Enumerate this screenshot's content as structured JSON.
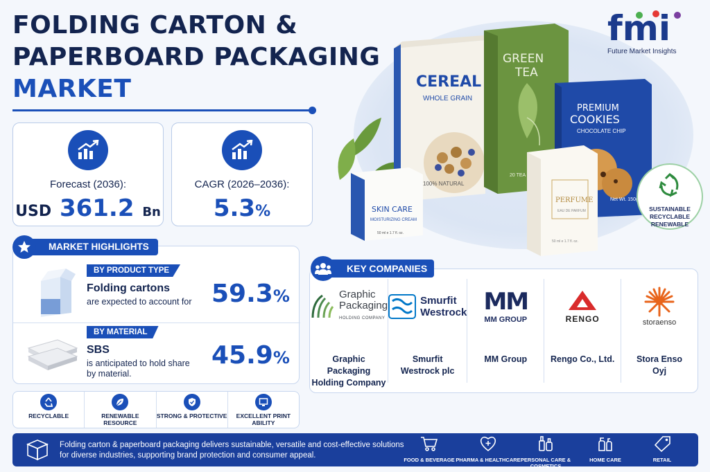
{
  "title": {
    "line1": "FOLDING CARTON &",
    "line2": "PAPERBOARD PACKAGING",
    "line3": "MARKET"
  },
  "brand": {
    "logo_text": "fmi",
    "name": "Future Market Insights"
  },
  "stats": [
    {
      "label": "Forecast (2036):",
      "prefix": "USD",
      "value": "361.2",
      "suffix": "Bn"
    },
    {
      "label": "CAGR (2026–2036):",
      "prefix": "",
      "value": "5.3",
      "suffix": "%"
    }
  ],
  "highlights": {
    "title": "MARKET HIGHLIGHTS",
    "items": [
      {
        "tag": "BY PRODUCT TYPE",
        "name": "Folding cartons",
        "desc": "are expected to account for",
        "value": "59.3",
        "unit": "%"
      },
      {
        "tag": "BY MATERIAL",
        "name": "SBS",
        "desc": "is anticipated to hold share by material.",
        "value": "45.9",
        "unit": "%"
      }
    ]
  },
  "features": [
    {
      "icon": "recycle-icon",
      "label": "RECYCLABLE"
    },
    {
      "icon": "leaf-icon",
      "label": "RENEWABLE RESOURCE"
    },
    {
      "icon": "shield-icon",
      "label": "STRONG & PROTECTIVE"
    },
    {
      "icon": "monitor-icon",
      "label": "EXCELLENT PRINT ABILITY"
    }
  ],
  "companies": {
    "title": "KEY COMPANIES",
    "items": [
      {
        "logo_line1": "Graphic",
        "logo_line2": "Packaging",
        "logo_sub": "HOLDING COMPANY",
        "name_line1": "Graphic Packaging",
        "name_line2": "Holding Company"
      },
      {
        "logo_line1": "Smurfit",
        "logo_line2": "Westrock",
        "logo_sub": "",
        "name_line1": "Smurfit",
        "name_line2": "Westrock plc"
      },
      {
        "logo_line1": "MM",
        "logo_line2": "MM GROUP",
        "logo_sub": "",
        "name_line1": "MM Group",
        "name_line2": ""
      },
      {
        "logo_line1": "RENGO",
        "logo_line2": "",
        "logo_sub": "",
        "name_line1": "Rengo Co., Ltd.",
        "name_line2": ""
      },
      {
        "logo_line1": "storaenso",
        "logo_line2": "",
        "logo_sub": "",
        "name_line1": "Stora Enso",
        "name_line2": "Oyj"
      }
    ]
  },
  "bottom": {
    "text": "Folding carton & paperboard packaging delivers sustainable, versatile and cost-effective solutions for diverse industries, supporting brand protection and consumer appeal.",
    "segments": [
      {
        "icon": "cart-icon",
        "label": "FOOD & BEVERAGE"
      },
      {
        "icon": "heart-plus-icon",
        "label": "PHARMA & HEALTHCARE"
      },
      {
        "icon": "bottles-icon",
        "label": "PERSONAL CARE & COSMETICS"
      },
      {
        "icon": "spray-bottles-icon",
        "label": "HOME CARE"
      },
      {
        "icon": "price-tag-icon",
        "label": "RETAIL"
      }
    ]
  },
  "badge": {
    "line1": "SUSTAINABLE",
    "line2": "RECYCLABLE",
    "line3": "RENEWABLE"
  },
  "boxes": {
    "cereal": {
      "title": "CEREAL",
      "sub": "WHOLE GRAIN",
      "side": "100% NATURAL"
    },
    "tea": {
      "title1": "GREEN",
      "title2": "TEA",
      "sub": "20 TEA BAGS"
    },
    "cookies": {
      "title1": "PREMIUM",
      "title2": "COOKIES",
      "sub": "CHOCOLATE CHIP",
      "side": "Net Wt. 150g"
    },
    "skincare": {
      "title": "SKIN CARE",
      "sub": "MOISTURIZING CREAM",
      "size": "50 ml e 1.7 fl. oz."
    },
    "perfume": {
      "title": "PERFUME",
      "sub": "EAU DE PARFUM",
      "size": "50 ml e 1.7 fl. oz."
    }
  }
}
